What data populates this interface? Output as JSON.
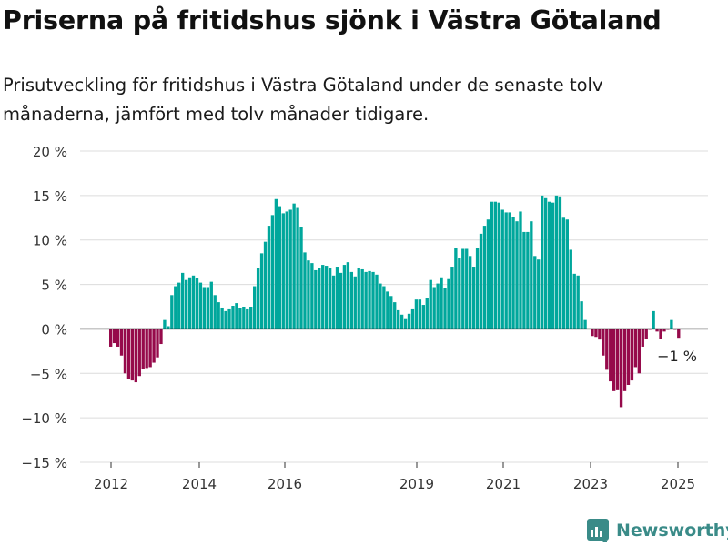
{
  "title": "Priserna på fritidshus sjönk i Västra Götaland",
  "subtitle": "Prisutveckling för fritidshus i Västra Götaland under de senaste tolv månaderna, jämfört med tolv månader tidigare.",
  "brand": "Newsworthy",
  "chart_data": {
    "type": "bar",
    "ylim": [
      -15,
      20
    ],
    "yticks": [
      20,
      15,
      10,
      5,
      0,
      -5,
      -10,
      -15
    ],
    "yticklabels": [
      "20 %",
      "15 %",
      "10 %",
      "5 %",
      "0 %",
      "−5 %",
      "−10 %",
      "−15 %"
    ],
    "xticklabels": [
      "2012",
      "2014",
      "2016",
      "2019",
      "2021",
      "2023",
      "2025"
    ],
    "grid": true,
    "colors": {
      "positive": "#00a79c",
      "negative": "#960a4b"
    },
    "annotation": "−1 %",
    "unit": "%",
    "values": [
      -2,
      -1.6,
      -2,
      -3,
      -5,
      -5.6,
      -5.8,
      -6,
      -5.3,
      -4.5,
      -4.4,
      -4.3,
      -3.8,
      -3.2,
      -1.7,
      1,
      0.3,
      3.8,
      4.8,
      5.2,
      6.3,
      5.5,
      5.8,
      6,
      5.7,
      5.2,
      4.7,
      4.7,
      5.3,
      3.8,
      3,
      2.4,
      2,
      2.2,
      2.6,
      2.9,
      2.3,
      2.5,
      2.2,
      2.5,
      4.8,
      6.9,
      8.5,
      9.8,
      11.6,
      12.8,
      14.6,
      13.8,
      13,
      13.2,
      13.4,
      14.1,
      13.6,
      11.5,
      8.6,
      7.7,
      7.4,
      6.6,
      6.8,
      7.2,
      7.1,
      6.9,
      6,
      7,
      6.3,
      7.2,
      7.5,
      6.4,
      5.9,
      6.9,
      6.7,
      6.4,
      6.5,
      6.4,
      6.1,
      5.1,
      4.8,
      4.2,
      3.7,
      3,
      2.1,
      1.6,
      1.2,
      1.7,
      2.2,
      3.3,
      3.3,
      2.7,
      3.5,
      5.5,
      4.7,
      5.1,
      5.8,
      4.6,
      5.6,
      7,
      9.1,
      8,
      9,
      9,
      8.2,
      7,
      9.1,
      10.7,
      11.6,
      12.3,
      14.3,
      14.3,
      14.2,
      13.4,
      13.1,
      13.1,
      12.6,
      12.1,
      13.2,
      10.9,
      10.9,
      12.1,
      8.2,
      7.8,
      15,
      14.7,
      14.3,
      14.2,
      15,
      14.9,
      12.5,
      12.3,
      8.9,
      6.2,
      6,
      3.1,
      1,
      0,
      -0.8,
      -0.9,
      -1.2,
      -3,
      -4.6,
      -5.9,
      -7,
      -6.9,
      -8.8,
      -7,
      -6.3,
      -5.8,
      -4.3,
      -5,
      -2,
      -1.1,
      -0.1,
      2,
      -0.3,
      -1.1,
      -0.3,
      -0.1,
      1,
      -0.1,
      -1,
      0
    ]
  }
}
